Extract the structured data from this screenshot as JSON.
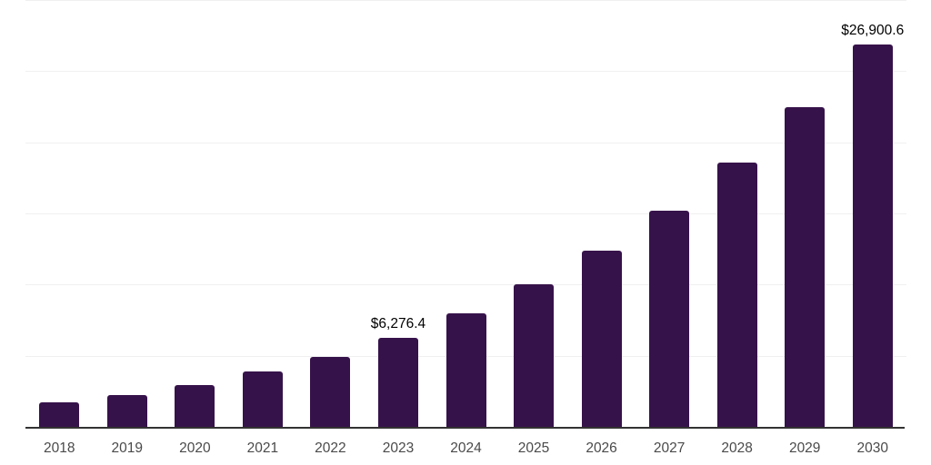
{
  "chart_data": {
    "type": "bar",
    "categories": [
      "2018",
      "2019",
      "2020",
      "2021",
      "2022",
      "2023",
      "2024",
      "2025",
      "2026",
      "2027",
      "2028",
      "2029",
      "2030"
    ],
    "values": [
      1750,
      2230,
      2940,
      3870,
      4900,
      6276.4,
      8000,
      10020,
      12380,
      15190,
      18570,
      22470,
      26900.6
    ],
    "data_labels": {
      "2023": "$6,276.4",
      "2030": "$26,900.6"
    },
    "ylim": [
      0,
      30000
    ],
    "gridline_step": 5000,
    "grid": "horizontal-only",
    "legend": "none",
    "y_axis_labels": "none",
    "colors": {
      "bar": "#36124a",
      "axis_line": "#333333",
      "gridline": "#f0f0f0",
      "tick_label": "#4a4a4a",
      "data_label": "#000000",
      "background": "#ffffff"
    }
  }
}
